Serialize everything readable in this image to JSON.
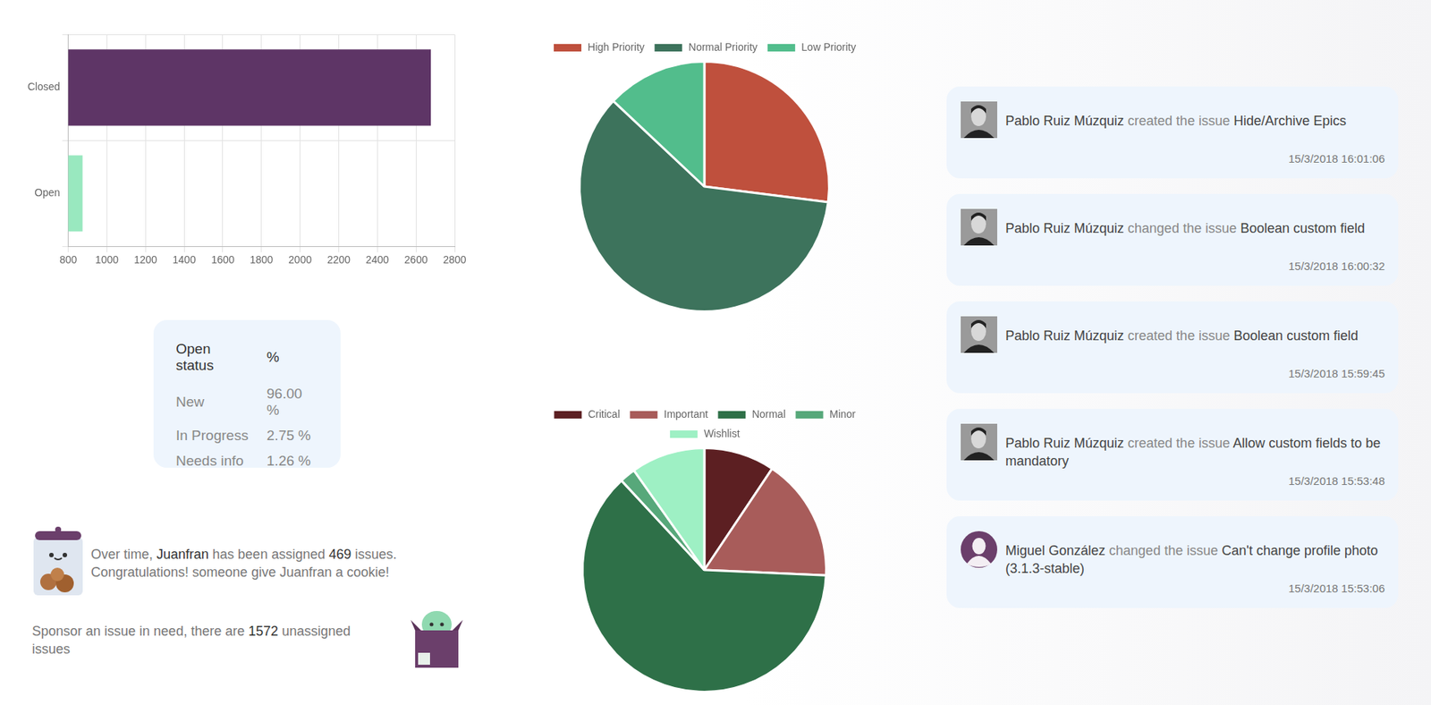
{
  "chart_data": [
    {
      "type": "bar",
      "orientation": "horizontal",
      "categories": [
        "Closed",
        "Open"
      ],
      "values": [
        2677,
        874
      ],
      "colors": [
        "#5e3566",
        "#99e8bf"
      ],
      "xlim": [
        800,
        2800
      ],
      "xticks": [
        800,
        1000,
        1200,
        1400,
        1600,
        1800,
        2000,
        2200,
        2400,
        2600,
        2800
      ],
      "grid": true
    },
    {
      "type": "pie",
      "categories": [
        "High Priority",
        "Normal Priority",
        "Low Priority"
      ],
      "values": [
        27,
        60,
        13
      ],
      "colors": [
        "#bf503d",
        "#3d735c",
        "#52bd8c"
      ],
      "legend": "top"
    },
    {
      "type": "pie",
      "categories": [
        "Critical",
        "Important",
        "Normal",
        "Minor",
        "Wishlist"
      ],
      "values": [
        9.4,
        16.3,
        62.4,
        2.1,
        9.8
      ],
      "colors": [
        "#5c1f22",
        "#a85c5a",
        "#2e7048",
        "#57a87a",
        "#9ef0c4"
      ],
      "legend": "top"
    }
  ],
  "open_status": {
    "header": [
      "Open status",
      "%"
    ],
    "rows": [
      [
        "New",
        "96.00 %"
      ],
      [
        "In Progress",
        "2.75 %"
      ],
      [
        "Needs info",
        "1.26 %"
      ]
    ]
  },
  "assigned": {
    "text_1": "Over time,",
    "user": "Juanfran",
    "text_2": "has been assigned",
    "count": 469,
    "text_3": "issues.",
    "line_2": "Congratulations! someone give Juanfran a cookie!"
  },
  "sponsor": {
    "text_1": "Sponsor an issue in need, there are",
    "count": 1572,
    "text_2": "unassigned issues"
  },
  "activity": [
    {
      "user": "Pablo Ruiz Múzquiz",
      "action": "created the issue",
      "issue": "Hide/Archive Epics",
      "time": "15/3/2018 16:01:06"
    },
    {
      "user": "Pablo Ruiz Múzquiz",
      "action": "changed the issue",
      "issue": "Boolean custom field",
      "time": "15/3/2018 16:00:32"
    },
    {
      "user": "Pablo Ruiz Múzquiz",
      "action": "created the issue",
      "issue": "Boolean custom field",
      "time": "15/3/2018 15:59:45"
    },
    {
      "user": "Pablo Ruiz Múzquiz",
      "action": "created the issue",
      "issue": "Allow custom fields to be mandatory",
      "time": "15/3/2018 15:53:48"
    },
    {
      "user": "Miguel González",
      "action": "changed the issue",
      "issue": "Can't change profile photo (3.1.3-stable)",
      "time": "15/3/2018 15:53:06"
    }
  ]
}
